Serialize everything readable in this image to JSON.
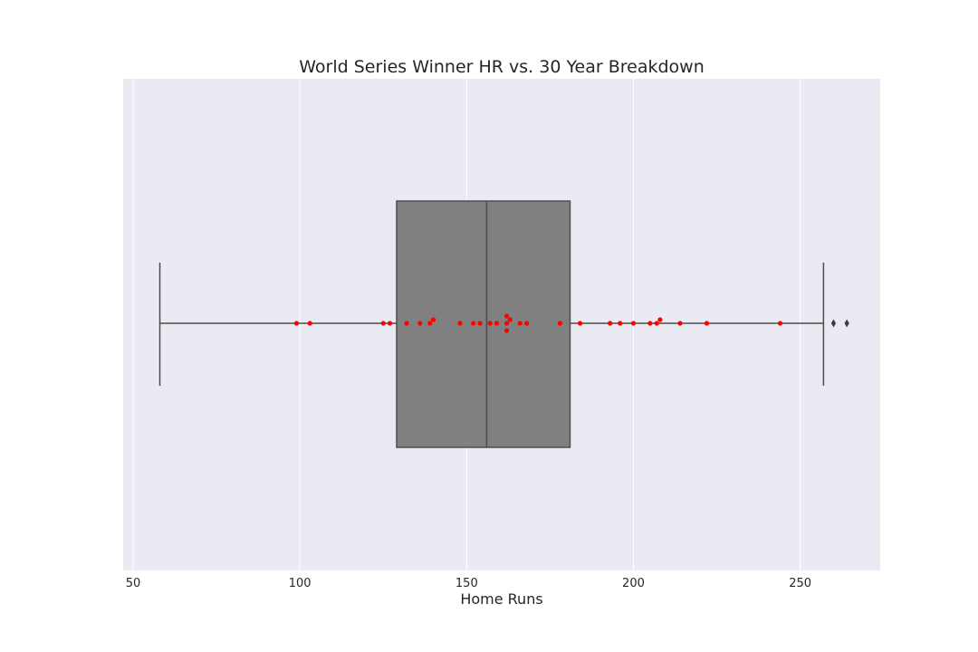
{
  "chart_data": {
    "type": "box",
    "title": "World Series Winner HR vs. 30 Year Breakdown",
    "xlabel": "Home Runs",
    "ylabel": "",
    "xlim": [
      47,
      274
    ],
    "x_ticks": [
      50,
      100,
      150,
      200,
      250
    ],
    "grid": true,
    "orientation": "horizontal",
    "box": {
      "whisker_low": 58,
      "q1": 129,
      "median": 156,
      "q3": 181,
      "whisker_high": 257,
      "outliers": [
        260,
        264
      ]
    },
    "points": [
      99,
      103,
      125,
      127,
      132,
      136,
      139,
      140,
      148,
      152,
      154,
      157,
      159,
      162,
      162,
      162,
      163,
      166,
      168,
      178,
      184,
      193,
      196,
      200,
      205,
      207,
      208,
      214,
      222,
      244
    ],
    "colors": {
      "background": "#EAEAF2",
      "grid": "#FFFFFF",
      "box_fill": "#808080",
      "box_edge": "#4D4D4D",
      "points": "#FF0000"
    }
  }
}
